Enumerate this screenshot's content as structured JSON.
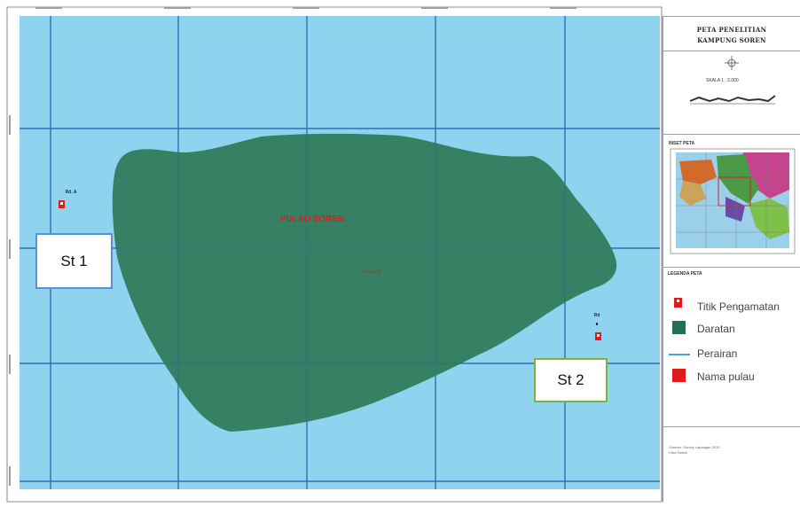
{
  "map": {
    "title_line1": "PETA PENELITIAN",
    "title_line2": "KAMPUNG SOREN",
    "scale_label": "SKALA 1 : 2.000",
    "island_label": "PULAU SOREN",
    "island_sublabel": "Kampung",
    "inset_title": "INSET PETA",
    "legend_title": "LEGENDA PETA",
    "colors": {
      "sea": "#8fd3ef",
      "land": "#2f7a58",
      "grid": "#2f6fb8",
      "marker": "#e21a1a"
    }
  },
  "stations": {
    "st1_label": "St 1",
    "st2_label": "St 2",
    "st1_code": "Rd. A",
    "st2_code": "Rd"
  },
  "legend": {
    "items": [
      {
        "label": "Titik Pengamatan",
        "icon": "observation-point-icon"
      },
      {
        "label": "Daratan",
        "icon": "land-swatch"
      },
      {
        "label": "Perairan",
        "icon": "water-line"
      },
      {
        "label": "Nama pulau",
        "icon": "island-name-swatch"
      }
    ]
  },
  "credit": {
    "line1": "Sumber: Survey Lapangan 2015",
    "line2": "Citra Satelit"
  }
}
